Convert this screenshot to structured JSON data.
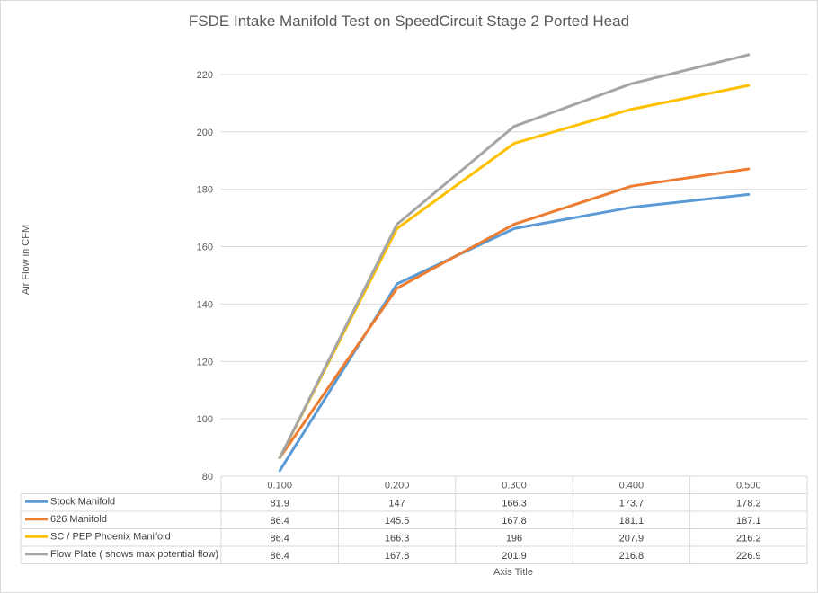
{
  "chart_data": {
    "type": "line",
    "title": "FSDE Intake Manifold Test on SpeedCircuit Stage 2 Ported Head",
    "xlabel": "Axis Title",
    "ylabel": "Air Flow in CFM",
    "categories": [
      "0.100",
      "0.200",
      "0.300",
      "0.400",
      "0.500"
    ],
    "ylim": [
      80,
      230
    ],
    "yticks": [
      "80",
      "100",
      "120",
      "140",
      "160",
      "180",
      "200",
      "220"
    ],
    "grid": true,
    "data_table": true,
    "series": [
      {
        "name": "Stock Manifold",
        "color": "#5b9bd5",
        "values": [
          81.9,
          147,
          166.3,
          173.7,
          178.2
        ],
        "labels": [
          "81.9",
          "147",
          "166.3",
          "173.7",
          "178.2"
        ]
      },
      {
        "name": "626 Manifold",
        "color": "#ed7d31",
        "values": [
          86.4,
          145.5,
          167.8,
          181.1,
          187.1
        ],
        "labels": [
          "86.4",
          "145.5",
          "167.8",
          "181.1",
          "187.1"
        ]
      },
      {
        "name": "SC / PEP Phoenix Manifold",
        "color": "#ffc000",
        "values": [
          86.4,
          166.3,
          196,
          207.9,
          216.2
        ],
        "labels": [
          "86.4",
          "166.3",
          "196",
          "207.9",
          "216.2"
        ]
      },
      {
        "name": "Flow Plate ( shows max potential flow)",
        "color": "#a5a5a5",
        "values": [
          86.4,
          167.8,
          201.9,
          216.8,
          226.9
        ],
        "labels": [
          "86.4",
          "167.8",
          "201.9",
          "216.8",
          "226.9"
        ]
      }
    ]
  }
}
